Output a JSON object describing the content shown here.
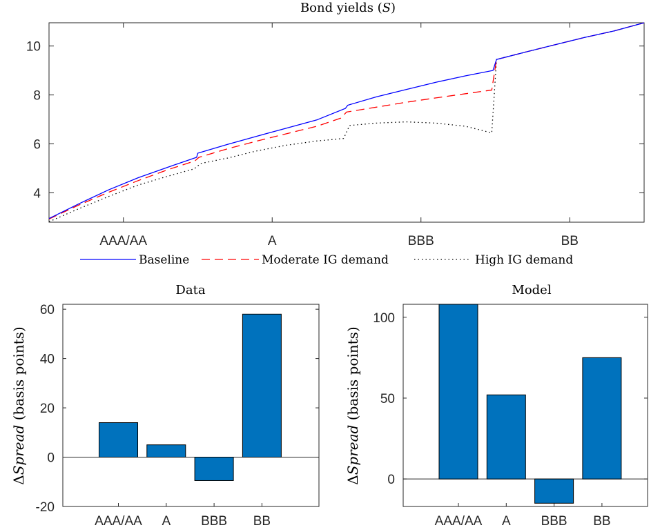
{
  "figure": {
    "top_title": "Bond yields (",
    "top_title_symbol": "S",
    "top_title_close": ")",
    "ylabel_delta": "Δ",
    "ylabel_symbol": "Spread",
    "ylabel_rest": " (basis points)"
  },
  "chart_data": [
    {
      "type": "line",
      "title": "Bond yields (S)",
      "xlim": [
        0,
        1
      ],
      "ylim": [
        2.8,
        10.95
      ],
      "yticks": [
        4,
        6,
        8,
        10
      ],
      "xticks": [
        {
          "x": 0.125,
          "label": "AAA/AA"
        },
        {
          "x": 0.375,
          "label": "A"
        },
        {
          "x": 0.625,
          "label": "BBB"
        },
        {
          "x": 0.875,
          "label": "BB"
        }
      ],
      "legend_position": "bottom",
      "colors": {
        "Baseline": "#0000ff",
        "Moderate IG demand": "#ff0000",
        "High IG demand": "#000000"
      },
      "series": [
        {
          "name": "Baseline",
          "style": "solid",
          "points": [
            [
              0,
              2.95
            ],
            [
              0.05,
              3.55
            ],
            [
              0.1,
              4.12
            ],
            [
              0.15,
              4.62
            ],
            [
              0.2,
              5.05
            ],
            [
              0.248,
              5.45
            ],
            [
              0.25,
              5.62
            ],
            [
              0.3,
              5.98
            ],
            [
              0.35,
              6.32
            ],
            [
              0.4,
              6.65
            ],
            [
              0.45,
              6.98
            ],
            [
              0.498,
              7.45
            ],
            [
              0.502,
              7.58
            ],
            [
              0.55,
              7.92
            ],
            [
              0.6,
              8.22
            ],
            [
              0.65,
              8.52
            ],
            [
              0.7,
              8.78
            ],
            [
              0.746,
              9.0
            ],
            [
              0.752,
              9.45
            ],
            [
              0.8,
              9.75
            ],
            [
              0.85,
              10.05
            ],
            [
              0.9,
              10.35
            ],
            [
              0.95,
              10.62
            ],
            [
              1.0,
              10.95
            ]
          ]
        },
        {
          "name": "Moderate IG demand",
          "style": "dashed",
          "points": [
            [
              0,
              2.93
            ],
            [
              0.05,
              3.5
            ],
            [
              0.1,
              4.02
            ],
            [
              0.15,
              4.5
            ],
            [
              0.2,
              4.95
            ],
            [
              0.245,
              5.3
            ],
            [
              0.252,
              5.45
            ],
            [
              0.3,
              5.8
            ],
            [
              0.35,
              6.12
            ],
            [
              0.4,
              6.42
            ],
            [
              0.45,
              6.72
            ],
            [
              0.49,
              7.05
            ],
            [
              0.5,
              7.3
            ],
            [
              0.55,
              7.5
            ],
            [
              0.6,
              7.7
            ],
            [
              0.65,
              7.88
            ],
            [
              0.7,
              8.05
            ],
            [
              0.744,
              8.2
            ],
            [
              0.752,
              9.45
            ],
            [
              0.8,
              9.75
            ],
            [
              0.85,
              10.05
            ],
            [
              0.9,
              10.35
            ],
            [
              0.95,
              10.62
            ],
            [
              1.0,
              10.95
            ]
          ]
        },
        {
          "name": "High IG demand",
          "style": "dotted",
          "points": [
            [
              0,
              2.82
            ],
            [
              0.05,
              3.35
            ],
            [
              0.1,
              3.85
            ],
            [
              0.15,
              4.32
            ],
            [
              0.2,
              4.68
            ],
            [
              0.244,
              4.98
            ],
            [
              0.255,
              5.2
            ],
            [
              0.3,
              5.42
            ],
            [
              0.35,
              5.72
            ],
            [
              0.4,
              5.95
            ],
            [
              0.45,
              6.12
            ],
            [
              0.495,
              6.22
            ],
            [
              0.505,
              6.75
            ],
            [
              0.55,
              6.85
            ],
            [
              0.6,
              6.9
            ],
            [
              0.65,
              6.85
            ],
            [
              0.7,
              6.72
            ],
            [
              0.744,
              6.45
            ],
            [
              0.752,
              9.45
            ],
            [
              0.8,
              9.75
            ],
            [
              0.85,
              10.05
            ],
            [
              0.9,
              10.35
            ],
            [
              0.95,
              10.62
            ],
            [
              1.0,
              10.95
            ]
          ]
        }
      ]
    },
    {
      "type": "bar",
      "title": "Data",
      "categories": [
        "AAA/AA",
        "A",
        "BBB",
        "BB"
      ],
      "values": [
        14,
        5,
        -9.5,
        58
      ],
      "ylim": [
        -20,
        62
      ],
      "yticks": [
        -20,
        0,
        20,
        40,
        60
      ],
      "ylabel": "ΔSpread (basis points)",
      "bar_color": "#0072bd"
    },
    {
      "type": "bar",
      "title": "Model",
      "categories": [
        "AAA/AA",
        "A",
        "BBB",
        "BB"
      ],
      "values": [
        108,
        52,
        -15,
        75
      ],
      "ylim": [
        -17,
        108
      ],
      "yticks": [
        0,
        50,
        100
      ],
      "ylabel": "ΔSpread (basis points)",
      "bar_color": "#0072bd"
    }
  ]
}
